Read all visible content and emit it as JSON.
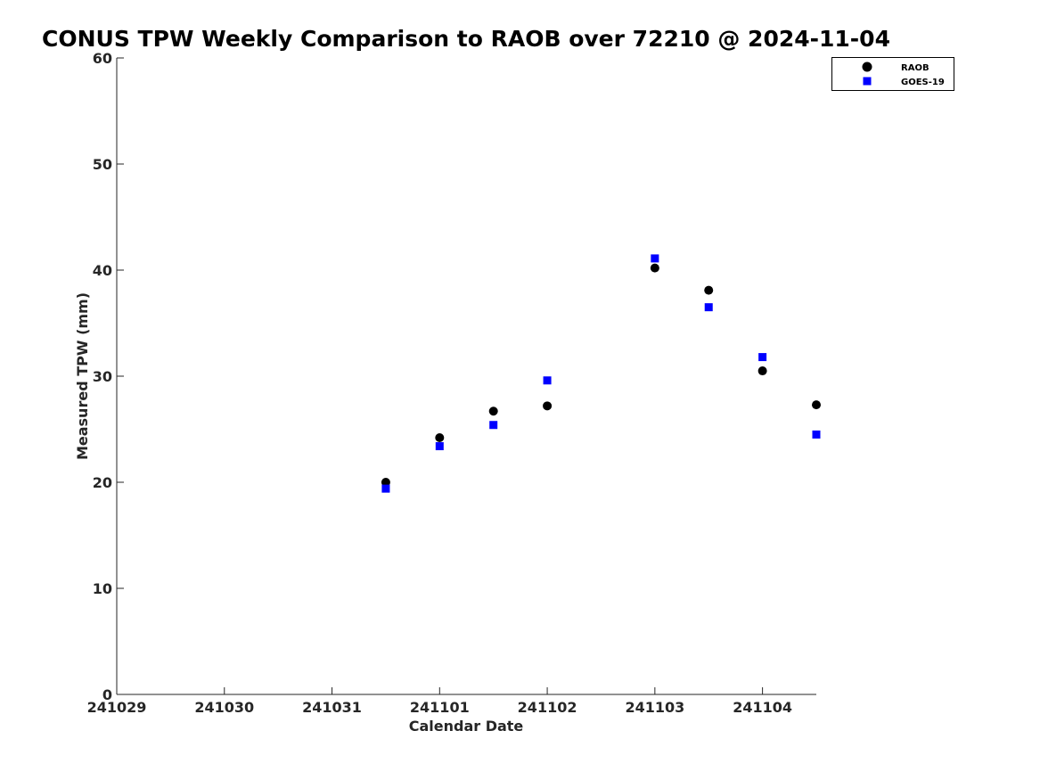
{
  "chart_data": {
    "type": "scatter",
    "title": "CONUS TPW Weekly Comparison to RAOB over 72210 @ 2024-11-04",
    "xlabel": "Calendar Date",
    "ylabel": "Measured TPW (mm)",
    "xlim": [
      "2024-10-29",
      "2024-11-04T12:00"
    ],
    "ylim": [
      0,
      60
    ],
    "x_ticks": [
      "2024-10-29",
      "2024-10-30",
      "2024-10-31",
      "2024-11-01",
      "2024-11-02",
      "2024-11-03",
      "2024-11-04"
    ],
    "x_tick_labels": [
      "241029",
      "241030",
      "241031",
      "241101",
      "241102",
      "241103",
      "241104"
    ],
    "y_ticks": [
      0,
      10,
      20,
      30,
      40,
      50,
      60
    ],
    "grid": false,
    "legend_position": "top-right",
    "series": [
      {
        "name": "RAOB",
        "marker": "circle",
        "color": "#000000",
        "x": [
          "2024-10-31T12:00",
          "2024-11-01T00:00",
          "2024-11-01T12:00",
          "2024-11-02T00:00",
          "2024-11-03T00:00",
          "2024-11-03T12:00",
          "2024-11-04T00:00",
          "2024-11-04T12:00"
        ],
        "y": [
          20.0,
          24.2,
          26.7,
          27.2,
          40.2,
          38.1,
          30.5,
          27.3
        ]
      },
      {
        "name": "GOES-19",
        "marker": "square",
        "color": "#0000ff",
        "x": [
          "2024-10-31T12:00",
          "2024-11-01T00:00",
          "2024-11-01T12:00",
          "2024-11-02T00:00",
          "2024-11-03T00:00",
          "2024-11-03T12:00",
          "2024-11-04T00:00",
          "2024-11-04T12:00"
        ],
        "y": [
          19.4,
          23.4,
          25.4,
          29.6,
          41.1,
          36.5,
          31.8,
          24.5
        ]
      }
    ]
  }
}
